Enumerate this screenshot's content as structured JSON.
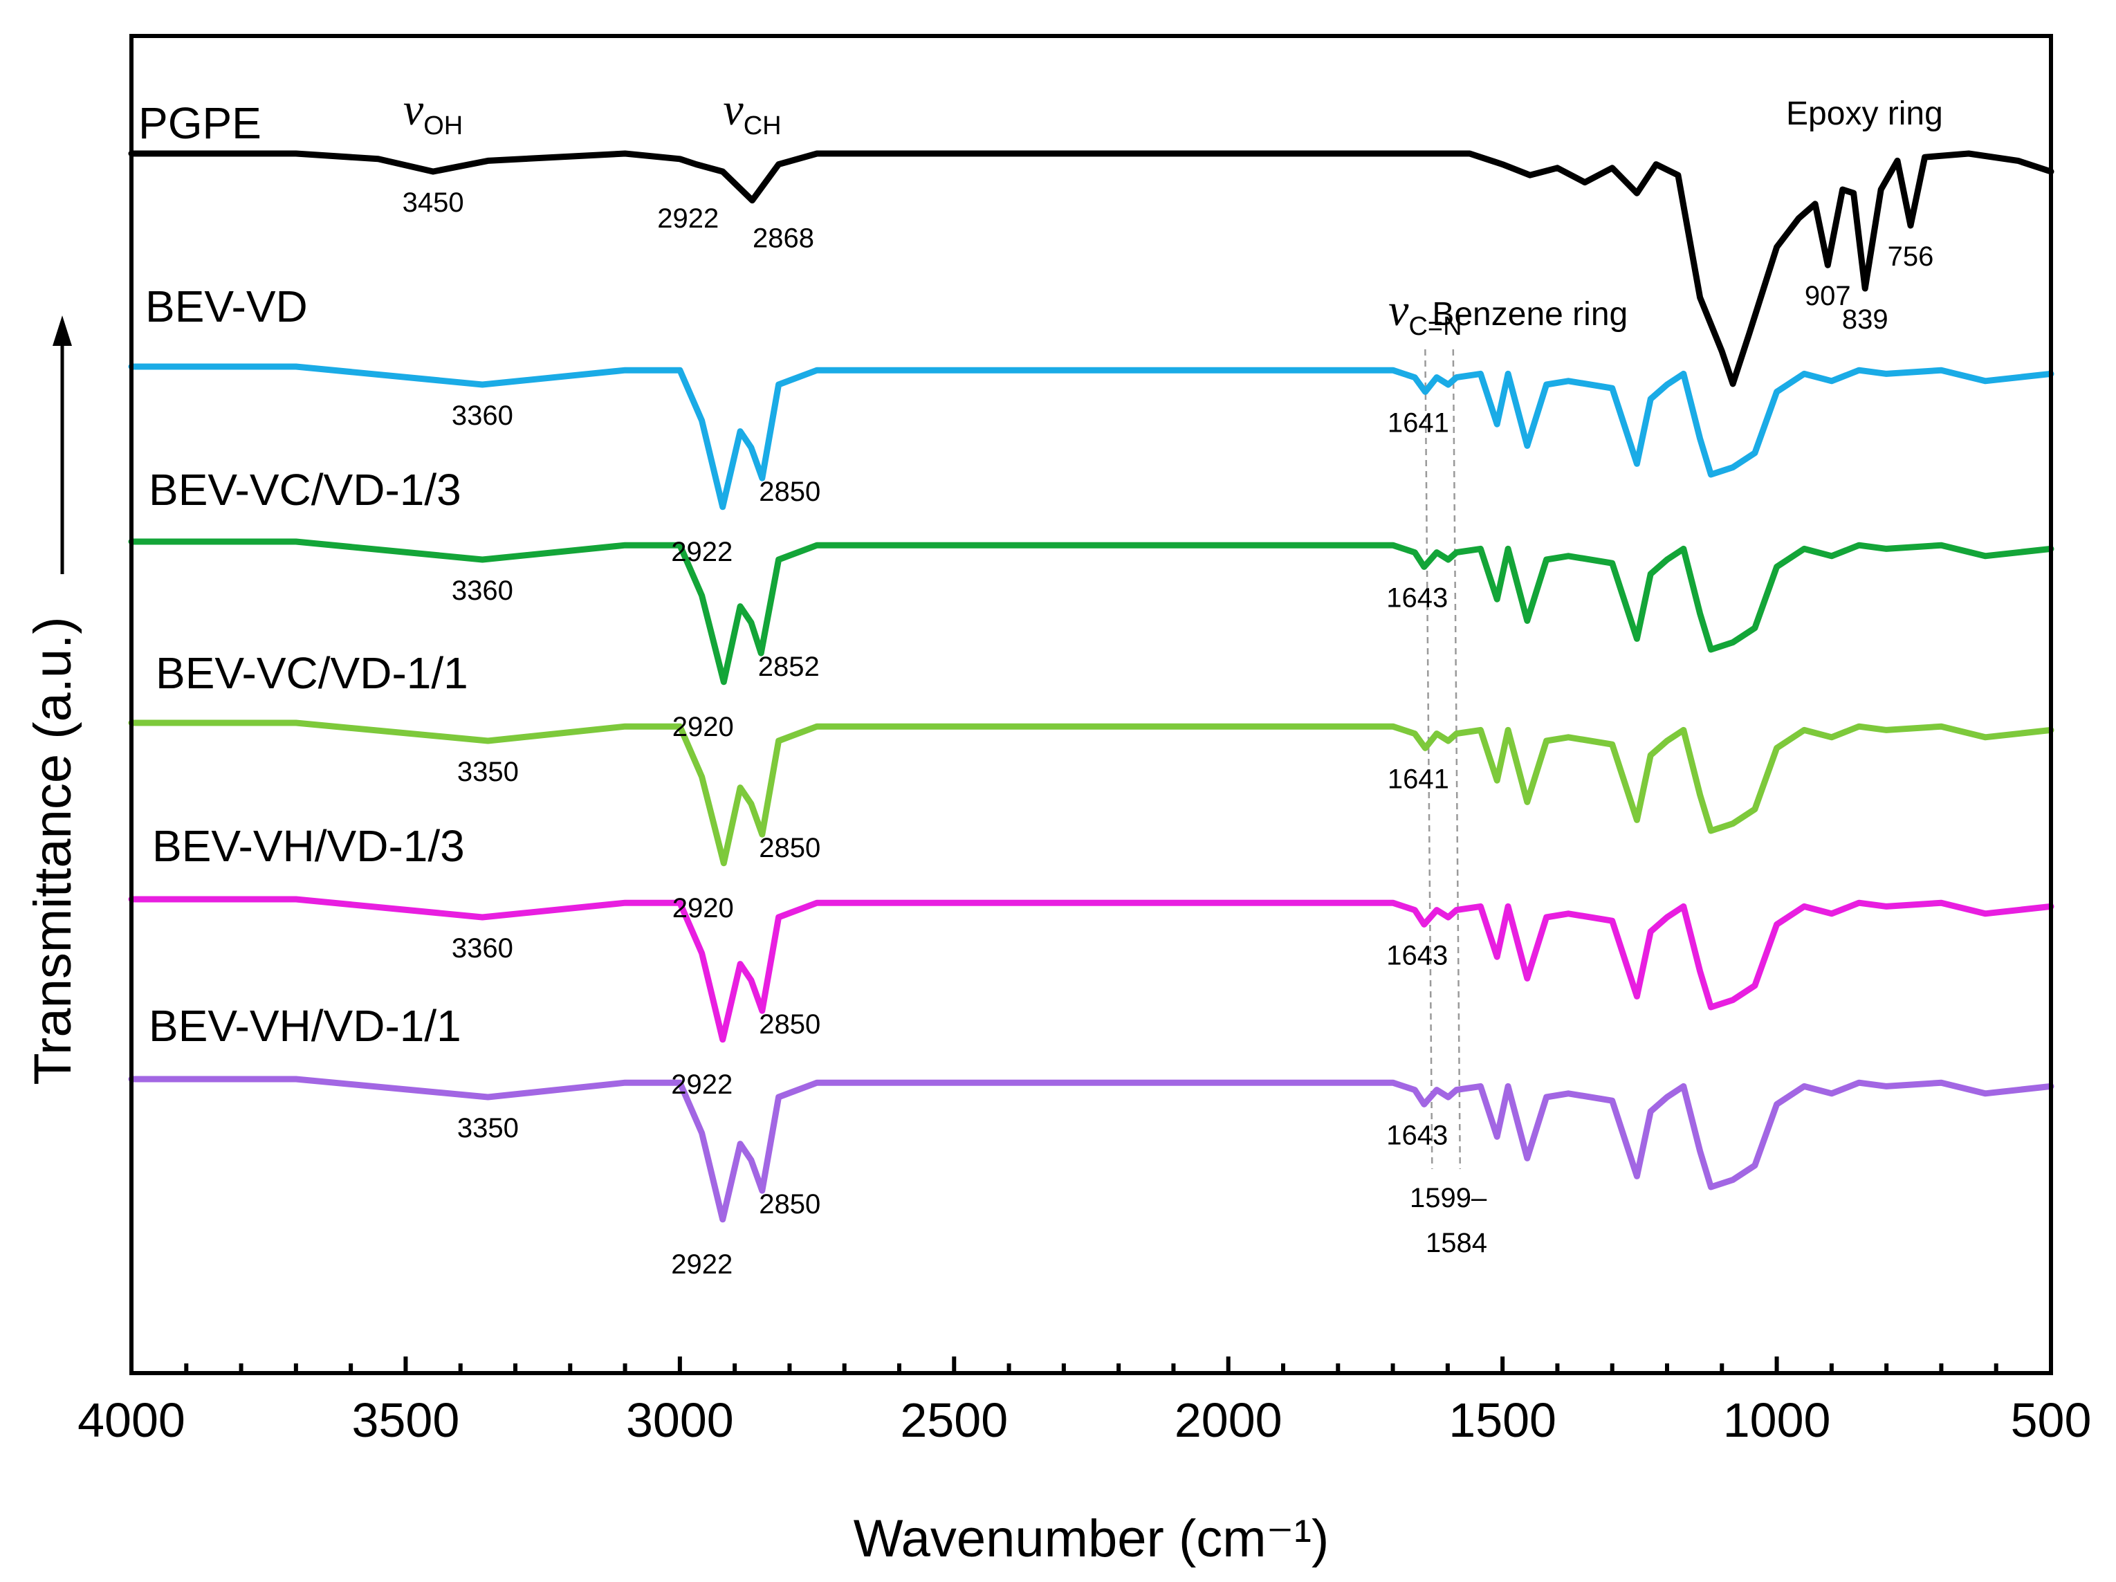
{
  "chart_data": {
    "type": "line",
    "title": "",
    "xlabel": "Wavenumber (cm⁻¹)",
    "ylabel": "Transmittance (a.u.)",
    "ylabel_arrow": "→",
    "xlim": [
      4000,
      500
    ],
    "x_reversed": true,
    "xticks": [
      4000,
      3500,
      3000,
      2500,
      2000,
      1500,
      1000,
      500
    ],
    "xtick_labels": [
      "4000",
      "3500",
      "3000",
      "2500",
      "2000",
      "1500",
      "1000",
      "500"
    ],
    "y_unit": "arbitrary (stacked traces, baseline offset per series)",
    "series": [
      {
        "name": "PGPE",
        "color": "#000000",
        "offset": 0,
        "points": [
          [
            4000,
            0
          ],
          [
            3700,
            0
          ],
          [
            3550,
            -3
          ],
          [
            3450,
            -10
          ],
          [
            3350,
            -4
          ],
          [
            3100,
            0
          ],
          [
            3000,
            -3
          ],
          [
            2970,
            -6
          ],
          [
            2922,
            -10
          ],
          [
            2868,
            -26
          ],
          [
            2820,
            -6
          ],
          [
            2750,
            0
          ],
          [
            1560,
            0
          ],
          [
            1500,
            -6
          ],
          [
            1450,
            -12
          ],
          [
            1400,
            -8
          ],
          [
            1350,
            -16
          ],
          [
            1300,
            -8
          ],
          [
            1255,
            -22
          ],
          [
            1220,
            -6
          ],
          [
            1180,
            -12
          ],
          [
            1140,
            -80
          ],
          [
            1100,
            -110
          ],
          [
            1080,
            -128
          ],
          [
            1050,
            -100
          ],
          [
            1000,
            -52
          ],
          [
            960,
            -36
          ],
          [
            930,
            -28
          ],
          [
            907,
            -62
          ],
          [
            880,
            -20
          ],
          [
            860,
            -22
          ],
          [
            839,
            -75
          ],
          [
            810,
            -20
          ],
          [
            780,
            -4
          ],
          [
            756,
            -40
          ],
          [
            730,
            -2
          ],
          [
            650,
            0
          ],
          [
            560,
            -4
          ],
          [
            500,
            -10
          ]
        ],
        "labels": [
          {
            "text": "3450",
            "x": 3450,
            "dy": 0
          },
          {
            "text": "2922",
            "x": 2922,
            "dy": 0
          },
          {
            "text": "2868",
            "x": 2868,
            "dy": 0
          },
          {
            "text": "907",
            "x": 907,
            "dy": 0
          },
          {
            "text": "839",
            "x": 839,
            "dy": 0
          },
          {
            "text": "756",
            "x": 756,
            "dy": 0
          }
        ]
      },
      {
        "name": "BEV-VD",
        "color": "#1aabe6",
        "offset": 1,
        "points": [
          [
            4000,
            0
          ],
          [
            3700,
            0
          ],
          [
            3360,
            -10
          ],
          [
            3100,
            -2
          ],
          [
            3000,
            -2
          ],
          [
            2960,
            -30
          ],
          [
            2922,
            -78
          ],
          [
            2890,
            -36
          ],
          [
            2870,
            -45
          ],
          [
            2850,
            -62
          ],
          [
            2820,
            -10
          ],
          [
            2750,
            -2
          ],
          [
            1700,
            -2
          ],
          [
            1660,
            -6
          ],
          [
            1641,
            -14
          ],
          [
            1620,
            -6
          ],
          [
            1599,
            -10
          ],
          [
            1584,
            -6
          ],
          [
            1540,
            -4
          ],
          [
            1510,
            -32
          ],
          [
            1490,
            -4
          ],
          [
            1455,
            -44
          ],
          [
            1420,
            -10
          ],
          [
            1380,
            -8
          ],
          [
            1300,
            -12
          ],
          [
            1255,
            -54
          ],
          [
            1230,
            -18
          ],
          [
            1200,
            -10
          ],
          [
            1170,
            -4
          ],
          [
            1140,
            -40
          ],
          [
            1120,
            -60
          ],
          [
            1080,
            -56
          ],
          [
            1040,
            -48
          ],
          [
            1000,
            -14
          ],
          [
            950,
            -4
          ],
          [
            900,
            -8
          ],
          [
            850,
            -2
          ],
          [
            800,
            -4
          ],
          [
            700,
            -2
          ],
          [
            620,
            -8
          ],
          [
            500,
            -4
          ]
        ],
        "labels": [
          {
            "text": "3360",
            "x": 3360,
            "dy": 0
          },
          {
            "text": "2922",
            "x": 2922,
            "dy": 0
          },
          {
            "text": "2850",
            "x": 2850,
            "dy": 0
          },
          {
            "text": "1641",
            "x": 1641,
            "dy": 0
          }
        ]
      },
      {
        "name": "BEV-VC/VD-1/3",
        "color": "#13a538",
        "offset": 2,
        "points": [
          [
            4000,
            0
          ],
          [
            3700,
            0
          ],
          [
            3360,
            -10
          ],
          [
            3100,
            -2
          ],
          [
            3000,
            -2
          ],
          [
            2960,
            -30
          ],
          [
            2920,
            -78
          ],
          [
            2890,
            -36
          ],
          [
            2870,
            -45
          ],
          [
            2852,
            -62
          ],
          [
            2820,
            -10
          ],
          [
            2750,
            -2
          ],
          [
            1700,
            -2
          ],
          [
            1660,
            -6
          ],
          [
            1643,
            -14
          ],
          [
            1620,
            -6
          ],
          [
            1599,
            -10
          ],
          [
            1584,
            -6
          ],
          [
            1540,
            -4
          ],
          [
            1510,
            -32
          ],
          [
            1490,
            -4
          ],
          [
            1455,
            -44
          ],
          [
            1420,
            -10
          ],
          [
            1380,
            -8
          ],
          [
            1300,
            -12
          ],
          [
            1255,
            -54
          ],
          [
            1230,
            -18
          ],
          [
            1200,
            -10
          ],
          [
            1170,
            -4
          ],
          [
            1140,
            -40
          ],
          [
            1120,
            -60
          ],
          [
            1080,
            -56
          ],
          [
            1040,
            -48
          ],
          [
            1000,
            -14
          ],
          [
            950,
            -4
          ],
          [
            900,
            -8
          ],
          [
            850,
            -2
          ],
          [
            800,
            -4
          ],
          [
            700,
            -2
          ],
          [
            620,
            -8
          ],
          [
            500,
            -4
          ]
        ],
        "labels": [
          {
            "text": "3360",
            "x": 3360,
            "dy": 0
          },
          {
            "text": "2920",
            "x": 2920,
            "dy": 0
          },
          {
            "text": "2852",
            "x": 2852,
            "dy": 0
          },
          {
            "text": "1643",
            "x": 1643,
            "dy": 0
          }
        ]
      },
      {
        "name": "BEV-VC/VD-1/1",
        "color": "#7dc93b",
        "offset": 3,
        "points": [
          [
            4000,
            0
          ],
          [
            3700,
            0
          ],
          [
            3350,
            -10
          ],
          [
            3100,
            -2
          ],
          [
            3000,
            -2
          ],
          [
            2960,
            -30
          ],
          [
            2920,
            -78
          ],
          [
            2890,
            -36
          ],
          [
            2870,
            -45
          ],
          [
            2850,
            -62
          ],
          [
            2820,
            -10
          ],
          [
            2750,
            -2
          ],
          [
            1700,
            -2
          ],
          [
            1660,
            -6
          ],
          [
            1641,
            -14
          ],
          [
            1620,
            -6
          ],
          [
            1599,
            -10
          ],
          [
            1584,
            -6
          ],
          [
            1540,
            -4
          ],
          [
            1510,
            -32
          ],
          [
            1490,
            -4
          ],
          [
            1455,
            -44
          ],
          [
            1420,
            -10
          ],
          [
            1380,
            -8
          ],
          [
            1300,
            -12
          ],
          [
            1255,
            -54
          ],
          [
            1230,
            -18
          ],
          [
            1200,
            -10
          ],
          [
            1170,
            -4
          ],
          [
            1140,
            -40
          ],
          [
            1120,
            -60
          ],
          [
            1080,
            -56
          ],
          [
            1040,
            -48
          ],
          [
            1000,
            -14
          ],
          [
            950,
            -4
          ],
          [
            900,
            -8
          ],
          [
            850,
            -2
          ],
          [
            800,
            -4
          ],
          [
            700,
            -2
          ],
          [
            620,
            -8
          ],
          [
            500,
            -4
          ]
        ],
        "labels": [
          {
            "text": "3350",
            "x": 3350,
            "dy": 0
          },
          {
            "text": "2920",
            "x": 2920,
            "dy": 0
          },
          {
            "text": "2850",
            "x": 2850,
            "dy": 0
          },
          {
            "text": "1641",
            "x": 1641,
            "dy": 0
          }
        ]
      },
      {
        "name": "BEV-VH/VD-1/3",
        "color": "#e81ee0",
        "offset": 4,
        "points": [
          [
            4000,
            0
          ],
          [
            3700,
            0
          ],
          [
            3360,
            -10
          ],
          [
            3100,
            -2
          ],
          [
            3000,
            -2
          ],
          [
            2960,
            -30
          ],
          [
            2922,
            -78
          ],
          [
            2890,
            -36
          ],
          [
            2870,
            -45
          ],
          [
            2850,
            -62
          ],
          [
            2820,
            -10
          ],
          [
            2750,
            -2
          ],
          [
            1700,
            -2
          ],
          [
            1660,
            -6
          ],
          [
            1643,
            -14
          ],
          [
            1620,
            -6
          ],
          [
            1599,
            -10
          ],
          [
            1584,
            -6
          ],
          [
            1540,
            -4
          ],
          [
            1510,
            -32
          ],
          [
            1490,
            -4
          ],
          [
            1455,
            -44
          ],
          [
            1420,
            -10
          ],
          [
            1380,
            -8
          ],
          [
            1300,
            -12
          ],
          [
            1255,
            -54
          ],
          [
            1230,
            -18
          ],
          [
            1200,
            -10
          ],
          [
            1170,
            -4
          ],
          [
            1140,
            -40
          ],
          [
            1120,
            -60
          ],
          [
            1080,
            -56
          ],
          [
            1040,
            -48
          ],
          [
            1000,
            -14
          ],
          [
            950,
            -4
          ],
          [
            900,
            -8
          ],
          [
            850,
            -2
          ],
          [
            800,
            -4
          ],
          [
            700,
            -2
          ],
          [
            620,
            -8
          ],
          [
            500,
            -4
          ]
        ],
        "labels": [
          {
            "text": "3360",
            "x": 3360,
            "dy": 0
          },
          {
            "text": "2922",
            "x": 2922,
            "dy": 0
          },
          {
            "text": "2850",
            "x": 2850,
            "dy": 0
          },
          {
            "text": "1643",
            "x": 1643,
            "dy": 0
          }
        ]
      },
      {
        "name": "BEV-VH/VD-1/1",
        "color": "#a266e3",
        "offset": 5,
        "points": [
          [
            4000,
            0
          ],
          [
            3700,
            0
          ],
          [
            3350,
            -10
          ],
          [
            3100,
            -2
          ],
          [
            3000,
            -2
          ],
          [
            2960,
            -30
          ],
          [
            2922,
            -78
          ],
          [
            2890,
            -36
          ],
          [
            2870,
            -45
          ],
          [
            2850,
            -62
          ],
          [
            2820,
            -10
          ],
          [
            2750,
            -2
          ],
          [
            1700,
            -2
          ],
          [
            1660,
            -6
          ],
          [
            1643,
            -14
          ],
          [
            1620,
            -6
          ],
          [
            1599,
            -10
          ],
          [
            1584,
            -6
          ],
          [
            1540,
            -4
          ],
          [
            1510,
            -32
          ],
          [
            1490,
            -4
          ],
          [
            1455,
            -44
          ],
          [
            1420,
            -10
          ],
          [
            1380,
            -8
          ],
          [
            1300,
            -12
          ],
          [
            1255,
            -54
          ],
          [
            1230,
            -18
          ],
          [
            1200,
            -10
          ],
          [
            1170,
            -4
          ],
          [
            1140,
            -40
          ],
          [
            1120,
            -60
          ],
          [
            1080,
            -56
          ],
          [
            1040,
            -48
          ],
          [
            1000,
            -14
          ],
          [
            950,
            -4
          ],
          [
            900,
            -8
          ],
          [
            850,
            -2
          ],
          [
            800,
            -4
          ],
          [
            700,
            -2
          ],
          [
            620,
            -8
          ],
          [
            500,
            -4
          ]
        ],
        "labels": [
          {
            "text": "3350",
            "x": 3350,
            "dy": 0
          },
          {
            "text": "2922",
            "x": 2922,
            "dy": 0
          },
          {
            "text": "2850",
            "x": 2850,
            "dy": 0
          },
          {
            "text": "1643",
            "x": 1643,
            "dy": 0
          }
        ]
      }
    ],
    "band_annotations": [
      {
        "symbol": "v",
        "subscript": "OH",
        "x": 3450,
        "series": "PGPE"
      },
      {
        "symbol": "v",
        "subscript": "CH",
        "x": 2868,
        "series": "PGPE"
      },
      {
        "text": "Epoxy ring",
        "x": 840,
        "series": "PGPE"
      },
      {
        "symbol": "v",
        "subscript": "C=N",
        "x": 1641,
        "series": "BEV-VD"
      },
      {
        "text": "Benzene ring",
        "x": 1450,
        "series": "BEV-VD"
      },
      {
        "text": "1599–",
        "x": 1599,
        "series": "BEV-VH/VD-1/1"
      },
      {
        "text": "1584",
        "x": 1584,
        "series": "BEV-VH/VD-1/1"
      }
    ],
    "reference_lines": [
      {
        "x": 1641,
        "style": "dashed",
        "color": "#9a9a9a"
      },
      {
        "x": 1590,
        "style": "dashed",
        "color": "#9a9a9a"
      }
    ],
    "grid": false,
    "legend": "none (series names placed above each trace)"
  }
}
